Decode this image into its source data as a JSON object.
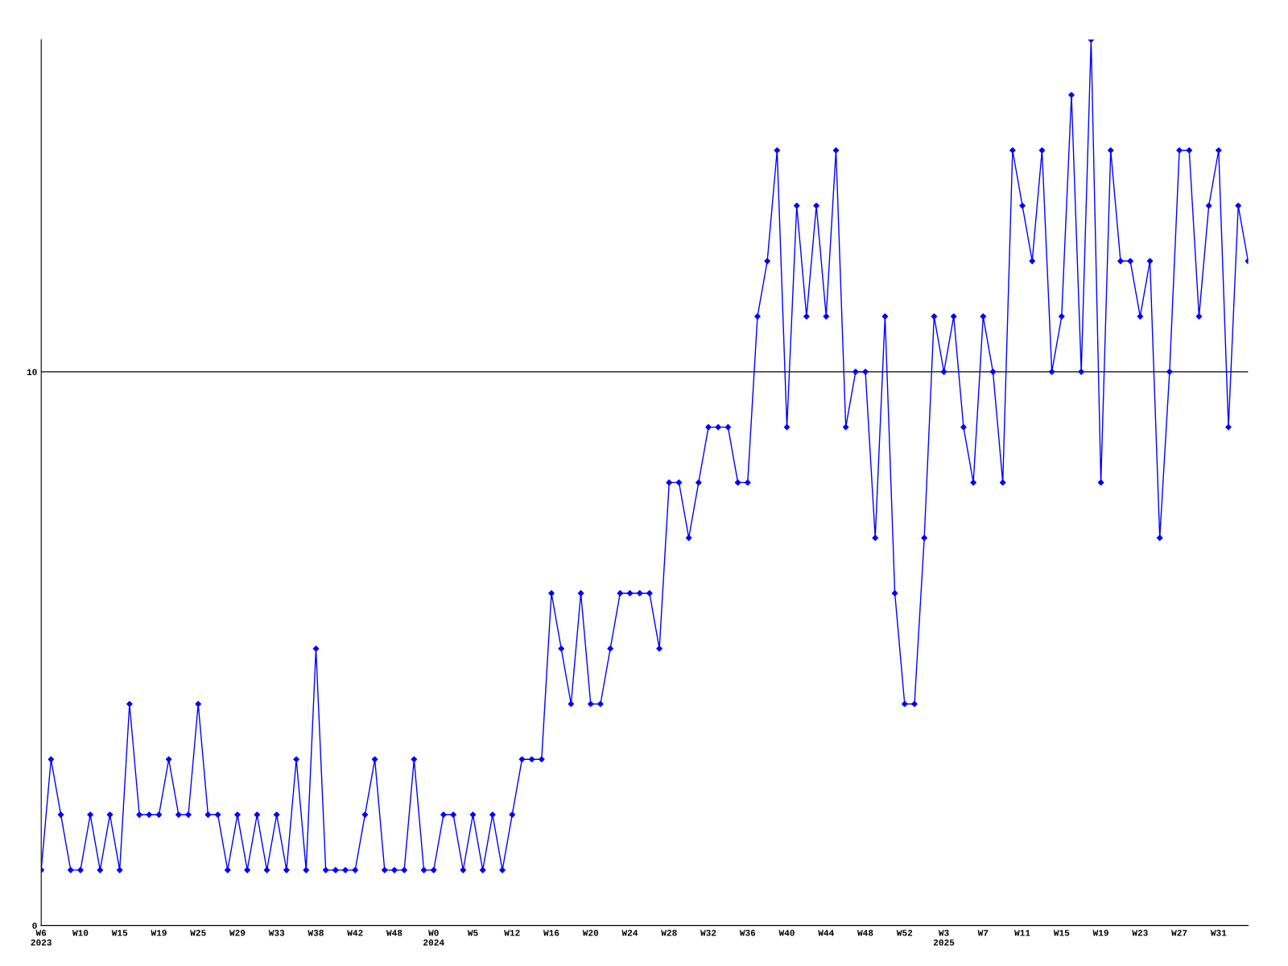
{
  "chart_data": {
    "type": "line",
    "categories": [
      "W6\n2023",
      null,
      null,
      null,
      "W10",
      null,
      null,
      null,
      "W15",
      null,
      null,
      null,
      "W19",
      null,
      null,
      null,
      "W25",
      null,
      null,
      null,
      "W29",
      null,
      null,
      null,
      "W33",
      null,
      null,
      null,
      "W38",
      null,
      null,
      null,
      "W42",
      null,
      null,
      null,
      "W48",
      null,
      null,
      null,
      "W0\n2024",
      null,
      null,
      null,
      "W5",
      null,
      null,
      null,
      "W12",
      null,
      null,
      null,
      "W16",
      null,
      null,
      null,
      "W20",
      null,
      null,
      null,
      "W24",
      null,
      null,
      null,
      "W28",
      null,
      null,
      null,
      "W32",
      null,
      null,
      null,
      "W36",
      null,
      null,
      null,
      "W40",
      null,
      null,
      null,
      "W44",
      null,
      null,
      null,
      "W48",
      null,
      null,
      null,
      "W52",
      null,
      null,
      null,
      "W3\n2025",
      null,
      null,
      null,
      "W7",
      null,
      null,
      null,
      "W11",
      null,
      null,
      null,
      "W15",
      null,
      null,
      null,
      "W19",
      null,
      null,
      null,
      "W23",
      null,
      null,
      null,
      "W27",
      null,
      null,
      null,
      "W31",
      null,
      null,
      null
    ],
    "series": [
      {
        "color": "#0000ff",
        "values": [
          1,
          3,
          2,
          1,
          1,
          2,
          1,
          2,
          1,
          4,
          2,
          2,
          2,
          3,
          2,
          2,
          4,
          2,
          2,
          1,
          2,
          1,
          2,
          1,
          2,
          1,
          3,
          1,
          5,
          1,
          1,
          1,
          1,
          2,
          3,
          1,
          1,
          1,
          3,
          1,
          1,
          2,
          2,
          1,
          2,
          1,
          2,
          1,
          2,
          3,
          3,
          3,
          6,
          5,
          4,
          6,
          4,
          4,
          5,
          6,
          6,
          6,
          6,
          5,
          8,
          8,
          7,
          8,
          9,
          9,
          9,
          8,
          8,
          11,
          12,
          14,
          9,
          13,
          11,
          13,
          11,
          14,
          9,
          10,
          10,
          7,
          11,
          6,
          4,
          4,
          7,
          11,
          10,
          11,
          9,
          8,
          11,
          10,
          8,
          14,
          13,
          12,
          14,
          10,
          11,
          15,
          10,
          16,
          8,
          14,
          12,
          12,
          11,
          12,
          7,
          10,
          14,
          14,
          11,
          13,
          14,
          9,
          13,
          12
        ]
      }
    ],
    "ylim": [
      0,
      16
    ],
    "yticks": [
      0,
      10
    ],
    "grid": "y",
    "marker": "diamond",
    "line_style": "solid"
  }
}
